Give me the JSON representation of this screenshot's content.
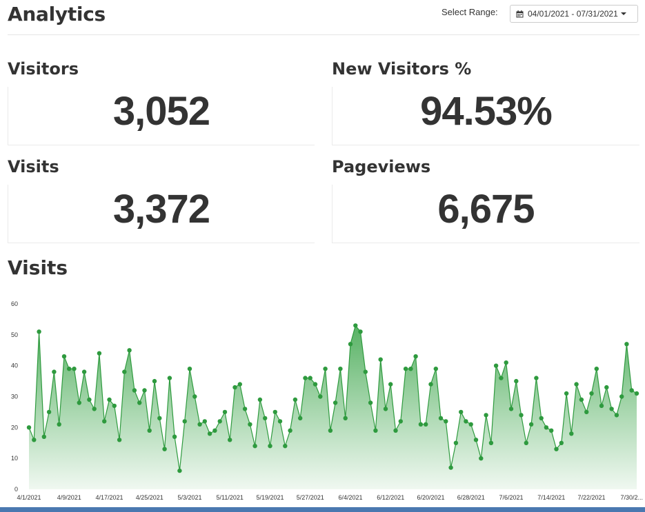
{
  "header": {
    "title": "Analytics",
    "range_label": "Select Range:",
    "range_value": "04/01/2021 - 07/31/2021"
  },
  "stats": {
    "visitors": {
      "label": "Visitors",
      "value": "3,052"
    },
    "new_visitors": {
      "label": "New Visitors %",
      "value": "94.53%"
    },
    "visits": {
      "label": "Visits",
      "value": "3,372"
    },
    "pageviews": {
      "label": "Pageviews",
      "value": "6,675"
    }
  },
  "chart_section": {
    "title": "Visits"
  },
  "colors": {
    "line": "#2e9a3e",
    "fill_top": "#4fae5c",
    "fill_bottom": "#eef7ef"
  },
  "chart_data": {
    "type": "area",
    "title": "Visits",
    "ylim": [
      0,
      60
    ],
    "y_ticks": [
      "0",
      "10",
      "20",
      "30",
      "40",
      "50",
      "60"
    ],
    "x_tick_labels": [
      "4/1/2021",
      "4/9/2021",
      "4/17/2021",
      "4/25/2021",
      "5/3/2021",
      "5/11/2021",
      "5/19/2021",
      "5/27/2021",
      "6/4/2021",
      "6/12/2021",
      "6/20/2021",
      "6/28/2021",
      "7/6/2021",
      "7/14/2021",
      "7/22/2021",
      "7/30/2..."
    ],
    "x_start": "4/1/2021",
    "x_end": "7/31/2021",
    "grid": false,
    "values": [
      20,
      16,
      51,
      17,
      25,
      38,
      21,
      43,
      39,
      39,
      28,
      38,
      29,
      26,
      44,
      22,
      29,
      27,
      16,
      38,
      45,
      32,
      28,
      32,
      19,
      35,
      23,
      13,
      36,
      17,
      6,
      22,
      39,
      30,
      21,
      22,
      18,
      19,
      22,
      25,
      16,
      33,
      34,
      26,
      21,
      14,
      29,
      23,
      14,
      25,
      22,
      14,
      19,
      29,
      23,
      36,
      36,
      34,
      30,
      39,
      19,
      28,
      39,
      23,
      47,
      53,
      51,
      38,
      28,
      19,
      42,
      26,
      34,
      19,
      22,
      39,
      39,
      43,
      21,
      21,
      34,
      39,
      23,
      22,
      7,
      15,
      25,
      22,
      21,
      16,
      10,
      24,
      15,
      40,
      36,
      41,
      26,
      35,
      24,
      15,
      21,
      36,
      23,
      20,
      19,
      13,
      15,
      31,
      18,
      34,
      29,
      25,
      31,
      39,
      27,
      33,
      26,
      24,
      30,
      47,
      32,
      31
    ]
  }
}
